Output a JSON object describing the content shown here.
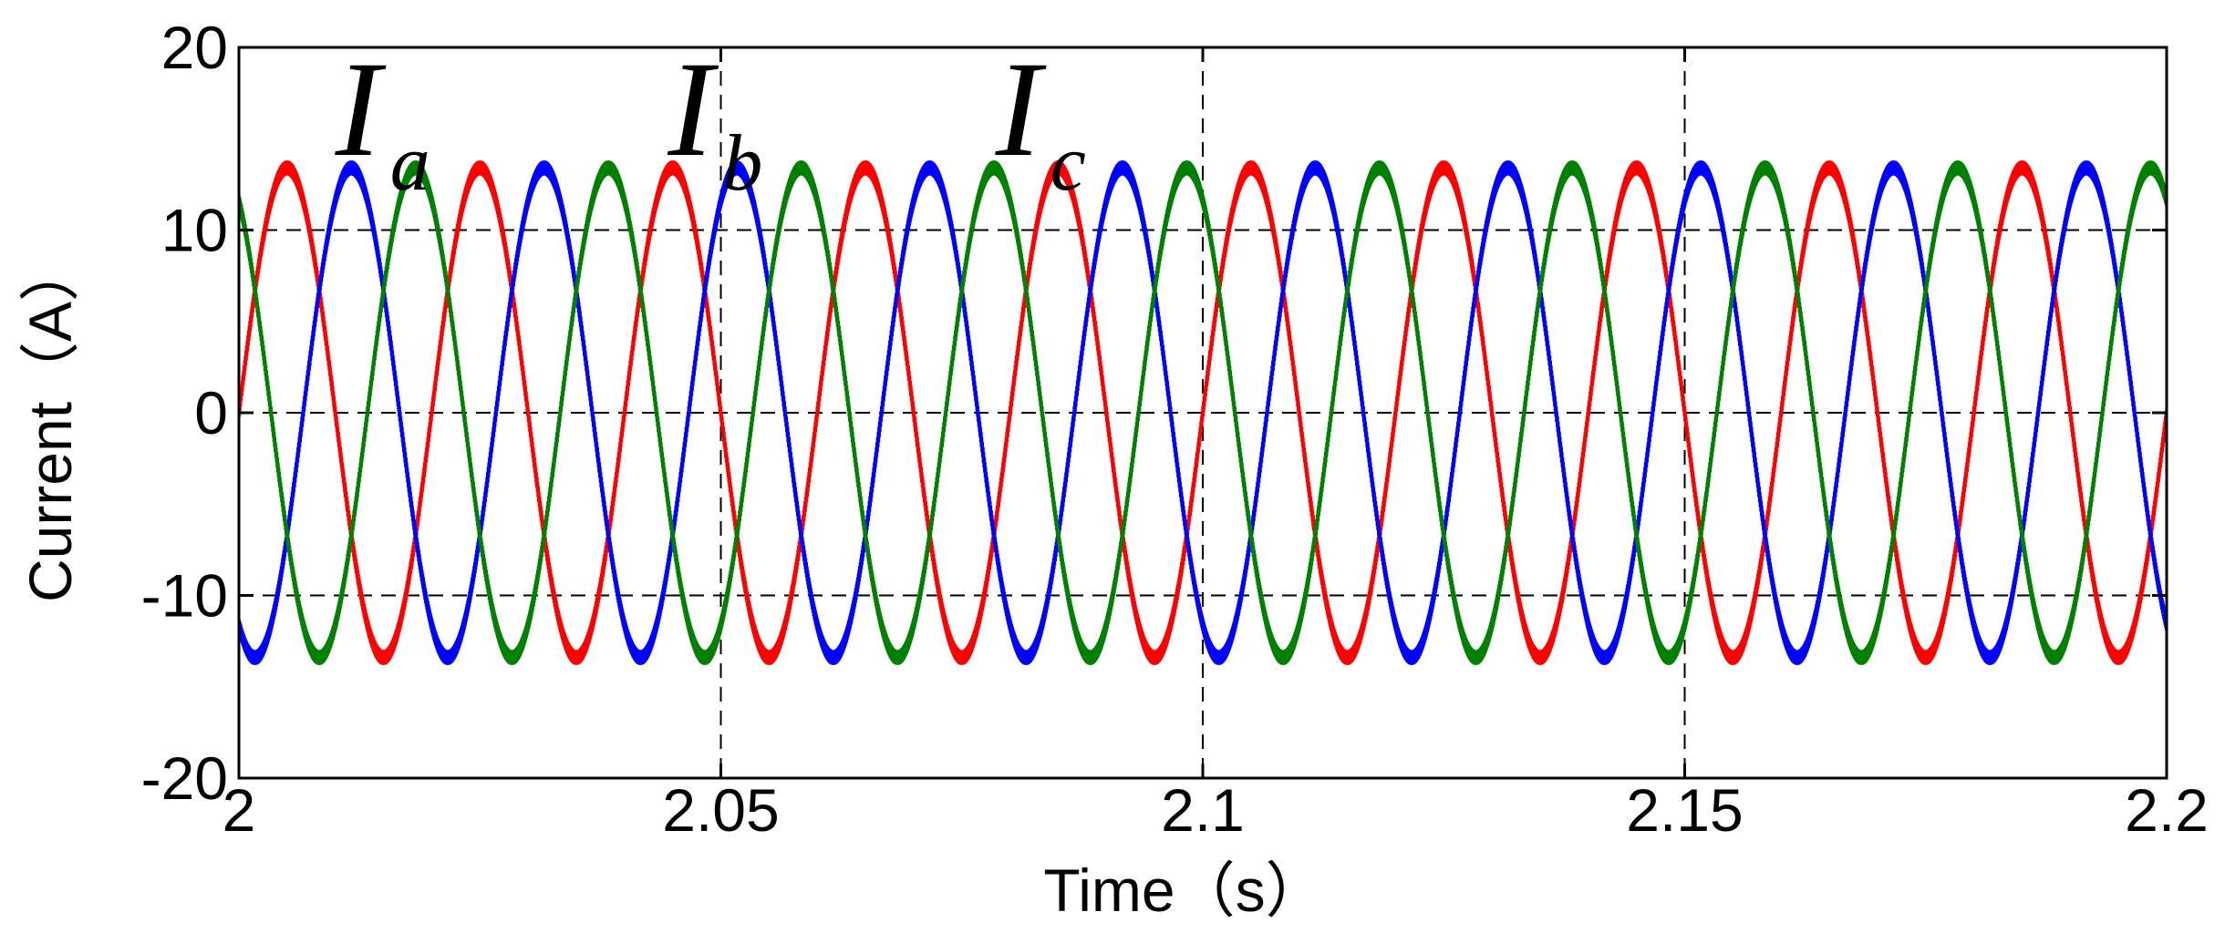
{
  "chart_data": {
    "type": "line",
    "title": "",
    "xlabel": "Time（s）",
    "ylabel": "Current（A）",
    "xlim": [
      2,
      2.2
    ],
    "ylim": [
      -20,
      20
    ],
    "xticks": [
      2,
      2.05,
      2.1,
      2.15,
      2.2
    ],
    "xtick_labels": [
      "2",
      "2.05",
      "2.1",
      "2.15",
      "2.2"
    ],
    "yticks": [
      -20,
      -10,
      0,
      10,
      20
    ],
    "ytick_labels": [
      "-20",
      "-10",
      "0",
      "10",
      "20"
    ],
    "grid": true,
    "grid_style": "dashed",
    "frequency_hz": 50,
    "amplitude": 13.4,
    "ripple_amplitude": 0.6,
    "series": [
      {
        "name_main": "I",
        "name_sub": "a",
        "color": "#ff0000",
        "phase_deg": 0
      },
      {
        "name_main": "I",
        "name_sub": "b",
        "color": "#0000ff",
        "phase_deg": -120
      },
      {
        "name_main": "I",
        "name_sub": "c",
        "color": "#008000",
        "phase_deg": 120
      }
    ],
    "series_labels": [
      {
        "main": "I",
        "sub": "a",
        "at_time": 2.01
      },
      {
        "main": "I",
        "sub": "b",
        "at_time": 2.0445
      },
      {
        "main": "I",
        "sub": "c",
        "at_time": 2.0785
      }
    ]
  }
}
